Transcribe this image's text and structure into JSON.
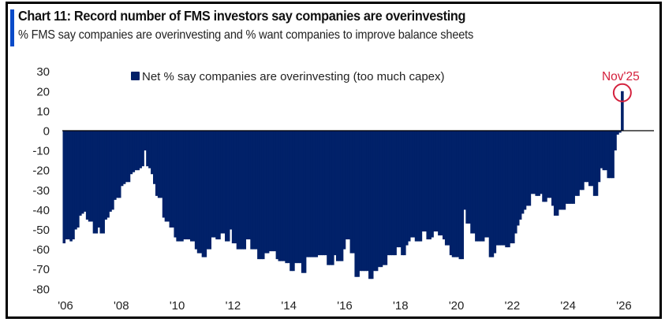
{
  "header": {
    "title": "Chart 11: Record number of FMS investors say companies are overinvesting",
    "subtitle": "% FMS say companies are overinvesting and % want companies to improve balance sheets",
    "accent_color": "#0A4BC9"
  },
  "colors": {
    "bar": "#012169",
    "annotation": "#D4213D",
    "zero_line": "#000000"
  },
  "chart_data": {
    "type": "bar",
    "title": "Chart 11: Record number of FMS investors say companies are overinvesting",
    "subtitle": "% FMS say companies are overinvesting and % want companies to improve balance sheets",
    "xlabel": "",
    "ylabel": "",
    "frequency": "monthly",
    "start": "Jan 2006",
    "end": "Nov 2025",
    "ylim": [
      -80,
      30
    ],
    "yticks": [
      30,
      20,
      10,
      0,
      -10,
      -20,
      -30,
      -40,
      -50,
      -60,
      -70,
      -80
    ],
    "xticks": [
      "'06",
      "'08",
      "'10",
      "'12",
      "'14",
      "'16",
      "'18",
      "'20",
      "'22",
      "'24",
      "'26"
    ],
    "xtick_years": [
      2006,
      2008,
      2010,
      2012,
      2014,
      2016,
      2018,
      2020,
      2022,
      2024,
      2026
    ],
    "grid": false,
    "legend": {
      "position": "top-left",
      "entries": [
        "Net % say companies are overinvesting (too much capex)"
      ]
    },
    "series": [
      {
        "name": "Net % say companies are overinvesting (too much capex)",
        "values": [
          -57,
          -55,
          -55,
          -56,
          -55,
          -50,
          -49,
          -43,
          -42,
          -41,
          -45,
          -46,
          -46,
          -52,
          -52,
          -49,
          -52,
          -52,
          -45,
          -44,
          -41,
          -40,
          -35,
          -34,
          -34,
          -28,
          -27,
          -26,
          -26,
          -22,
          -21,
          -20,
          -20,
          -19,
          -18,
          -10,
          -18,
          -19,
          -22,
          -27,
          -33,
          -34,
          -34,
          -44,
          -46,
          -46,
          -49,
          -49,
          -54,
          -56,
          -56,
          -56,
          -55,
          -55,
          -55,
          -56,
          -56,
          -60,
          -62,
          -62,
          -64,
          -64,
          -60,
          -60,
          -54,
          -54,
          -55,
          -55,
          -52,
          -52,
          -56,
          -56,
          -50,
          -57,
          -57,
          -60,
          -60,
          -60,
          -60,
          -55,
          -55,
          -60,
          -60,
          -60,
          -65,
          -65,
          -65,
          -62,
          -62,
          -61,
          -61,
          -61,
          -65,
          -66,
          -66,
          -66,
          -67,
          -67,
          -71,
          -71,
          -67,
          -67,
          -67,
          -72,
          -72,
          -64,
          -64,
          -64,
          -64,
          -64,
          -63,
          -63,
          -63,
          -63,
          -68,
          -68,
          -68,
          -63,
          -66,
          -66,
          -66,
          -60,
          -55,
          -55,
          -62,
          -62,
          -74,
          -74,
          -71,
          -71,
          -71,
          -71,
          -75,
          -75,
          -71,
          -71,
          -69,
          -69,
          -68,
          -68,
          -63,
          -63,
          -63,
          -63,
          -59,
          -59,
          -63,
          -63,
          -58,
          -56,
          -54,
          -54,
          -56,
          -56,
          -56,
          -51,
          -51,
          -55,
          -55,
          -54,
          -51,
          -51,
          -53,
          -53,
          -55,
          -58,
          -58,
          -63,
          -64,
          -64,
          -64,
          -65,
          -65,
          -40,
          -47,
          -47,
          -52,
          -52,
          -56,
          -56,
          -56,
          -56,
          -54,
          -54,
          -64,
          -64,
          -62,
          -58,
          -58,
          -58,
          -58,
          -59,
          -59,
          -57,
          -57,
          -52,
          -48,
          -45,
          -42,
          -40,
          -38,
          -38,
          -32,
          -32,
          -33,
          -33,
          -32,
          -36,
          -36,
          -34,
          -34,
          -38,
          -43,
          -43,
          -40,
          -40,
          -40,
          -37,
          -37,
          -37,
          -37,
          -33,
          -33,
          -30,
          -30,
          -26,
          -26,
          -28,
          -28,
          -33,
          -33,
          -26,
          -19,
          -20,
          -20,
          -24,
          -24,
          -24,
          -10,
          -2,
          -1,
          20
        ]
      }
    ],
    "annotations": [
      {
        "text": "Nov'25",
        "target": "last",
        "value": 20,
        "style": "circle"
      }
    ]
  }
}
